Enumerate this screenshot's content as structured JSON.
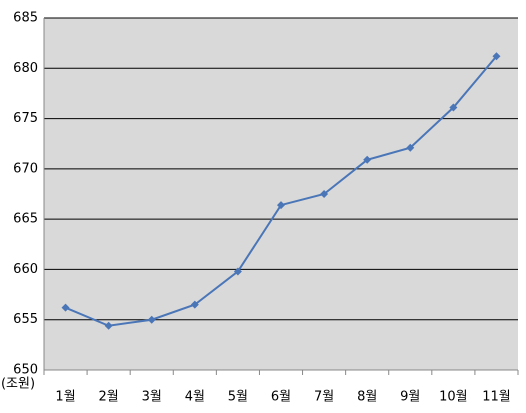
{
  "chart_data": {
    "type": "line",
    "y_label": "(조원)",
    "categories": [
      "1월",
      "2월",
      "3월",
      "4월",
      "5월",
      "6월",
      "7월",
      "8월",
      "9월",
      "10월",
      "11월"
    ],
    "series": [
      {
        "color": "#4a76b8",
        "values": [
          656.2,
          654.4,
          655.0,
          656.5,
          659.8,
          666.4,
          667.5,
          670.9,
          672.1,
          676.1,
          681.2
        ]
      }
    ],
    "ylim": [
      650,
      685
    ],
    "yticks": [
      650,
      655,
      660,
      665,
      670,
      675,
      680,
      685
    ],
    "grid": true
  }
}
